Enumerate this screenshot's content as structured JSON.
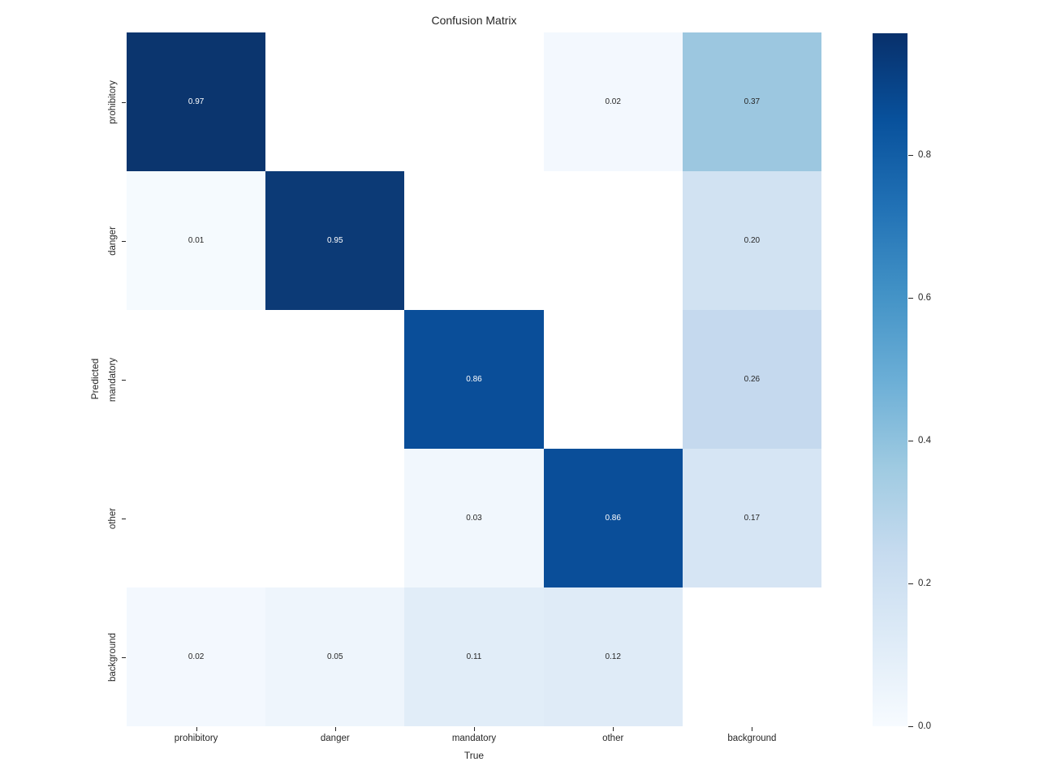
{
  "title": "Confusion Matrix",
  "axes": {
    "x_label": "True",
    "y_label": "Predicted",
    "x_ticks": [
      "prohibitory",
      "danger",
      "mandatory",
      "other",
      "background"
    ],
    "y_ticks": [
      "prohibitory",
      "danger",
      "mandatory",
      "other",
      "background"
    ]
  },
  "colorbar": {
    "tick_values": [
      0.0,
      0.2,
      0.4,
      0.6,
      0.8
    ],
    "tick_labels": [
      "0.0",
      "0.2",
      "0.4",
      "0.6",
      "0.8"
    ],
    "vmin": 0.0,
    "vmax": 0.97,
    "gradient_bottom_to_top": [
      "#f7fbff",
      "#deebf7",
      "#c6dbef",
      "#9ecae1",
      "#6baed6",
      "#4292c6",
      "#2171b5",
      "#08519c",
      "#08306b"
    ]
  },
  "chart_data": {
    "type": "heatmap",
    "title": "Confusion Matrix",
    "xlabel": "True",
    "ylabel": "Predicted",
    "x_categories": [
      "prohibitory",
      "danger",
      "mandatory",
      "other",
      "background"
    ],
    "y_categories": [
      "prohibitory",
      "danger",
      "mandatory",
      "other",
      "background"
    ],
    "colormap": "Blues",
    "vmin": 0.0,
    "vmax": 0.97,
    "matrix": [
      [
        0.97,
        null,
        null,
        0.02,
        0.37
      ],
      [
        0.01,
        0.95,
        null,
        null,
        0.2
      ],
      [
        null,
        null,
        0.86,
        null,
        0.26
      ],
      [
        null,
        null,
        0.03,
        0.86,
        0.17
      ],
      [
        0.02,
        0.05,
        0.11,
        0.12,
        null
      ]
    ],
    "cells": [
      [
        {
          "label": "0.97",
          "bg": "#0b356e",
          "fg": "#ffffff"
        },
        {
          "label": "",
          "bg": "#ffffff",
          "fg": "#262626"
        },
        {
          "label": "",
          "bg": "#ffffff",
          "fg": "#262626"
        },
        {
          "label": "0.02",
          "bg": "#f3f8fe",
          "fg": "#262626"
        },
        {
          "label": "0.37",
          "bg": "#9cc7e0",
          "fg": "#262626"
        }
      ],
      [
        {
          "label": "0.01",
          "bg": "#f5fafe",
          "fg": "#262626"
        },
        {
          "label": "0.95",
          "bg": "#0c3a76",
          "fg": "#ffffff"
        },
        {
          "label": "",
          "bg": "#ffffff",
          "fg": "#262626"
        },
        {
          "label": "",
          "bg": "#ffffff",
          "fg": "#262626"
        },
        {
          "label": "0.20",
          "bg": "#d1e2f2",
          "fg": "#262626"
        }
      ],
      [
        {
          "label": "",
          "bg": "#ffffff",
          "fg": "#262626"
        },
        {
          "label": "",
          "bg": "#ffffff",
          "fg": "#262626"
        },
        {
          "label": "0.86",
          "bg": "#0a4e99",
          "fg": "#ffffff"
        },
        {
          "label": "",
          "bg": "#ffffff",
          "fg": "#262626"
        },
        {
          "label": "0.26",
          "bg": "#c5d9ee",
          "fg": "#262626"
        }
      ],
      [
        {
          "label": "",
          "bg": "#ffffff",
          "fg": "#262626"
        },
        {
          "label": "",
          "bg": "#ffffff",
          "fg": "#262626"
        },
        {
          "label": "0.03",
          "bg": "#f1f7fd",
          "fg": "#262626"
        },
        {
          "label": "0.86",
          "bg": "#0a4e99",
          "fg": "#ffffff"
        },
        {
          "label": "0.17",
          "bg": "#d6e5f4",
          "fg": "#262626"
        }
      ],
      [
        {
          "label": "0.02",
          "bg": "#f3f8fe",
          "fg": "#262626"
        },
        {
          "label": "0.05",
          "bg": "#eef5fc",
          "fg": "#262626"
        },
        {
          "label": "0.11",
          "bg": "#e1edf8",
          "fg": "#262626"
        },
        {
          "label": "0.12",
          "bg": "#dfebf7",
          "fg": "#262626"
        },
        {
          "label": "",
          "bg": "#ffffff",
          "fg": "#262626"
        }
      ]
    ]
  }
}
